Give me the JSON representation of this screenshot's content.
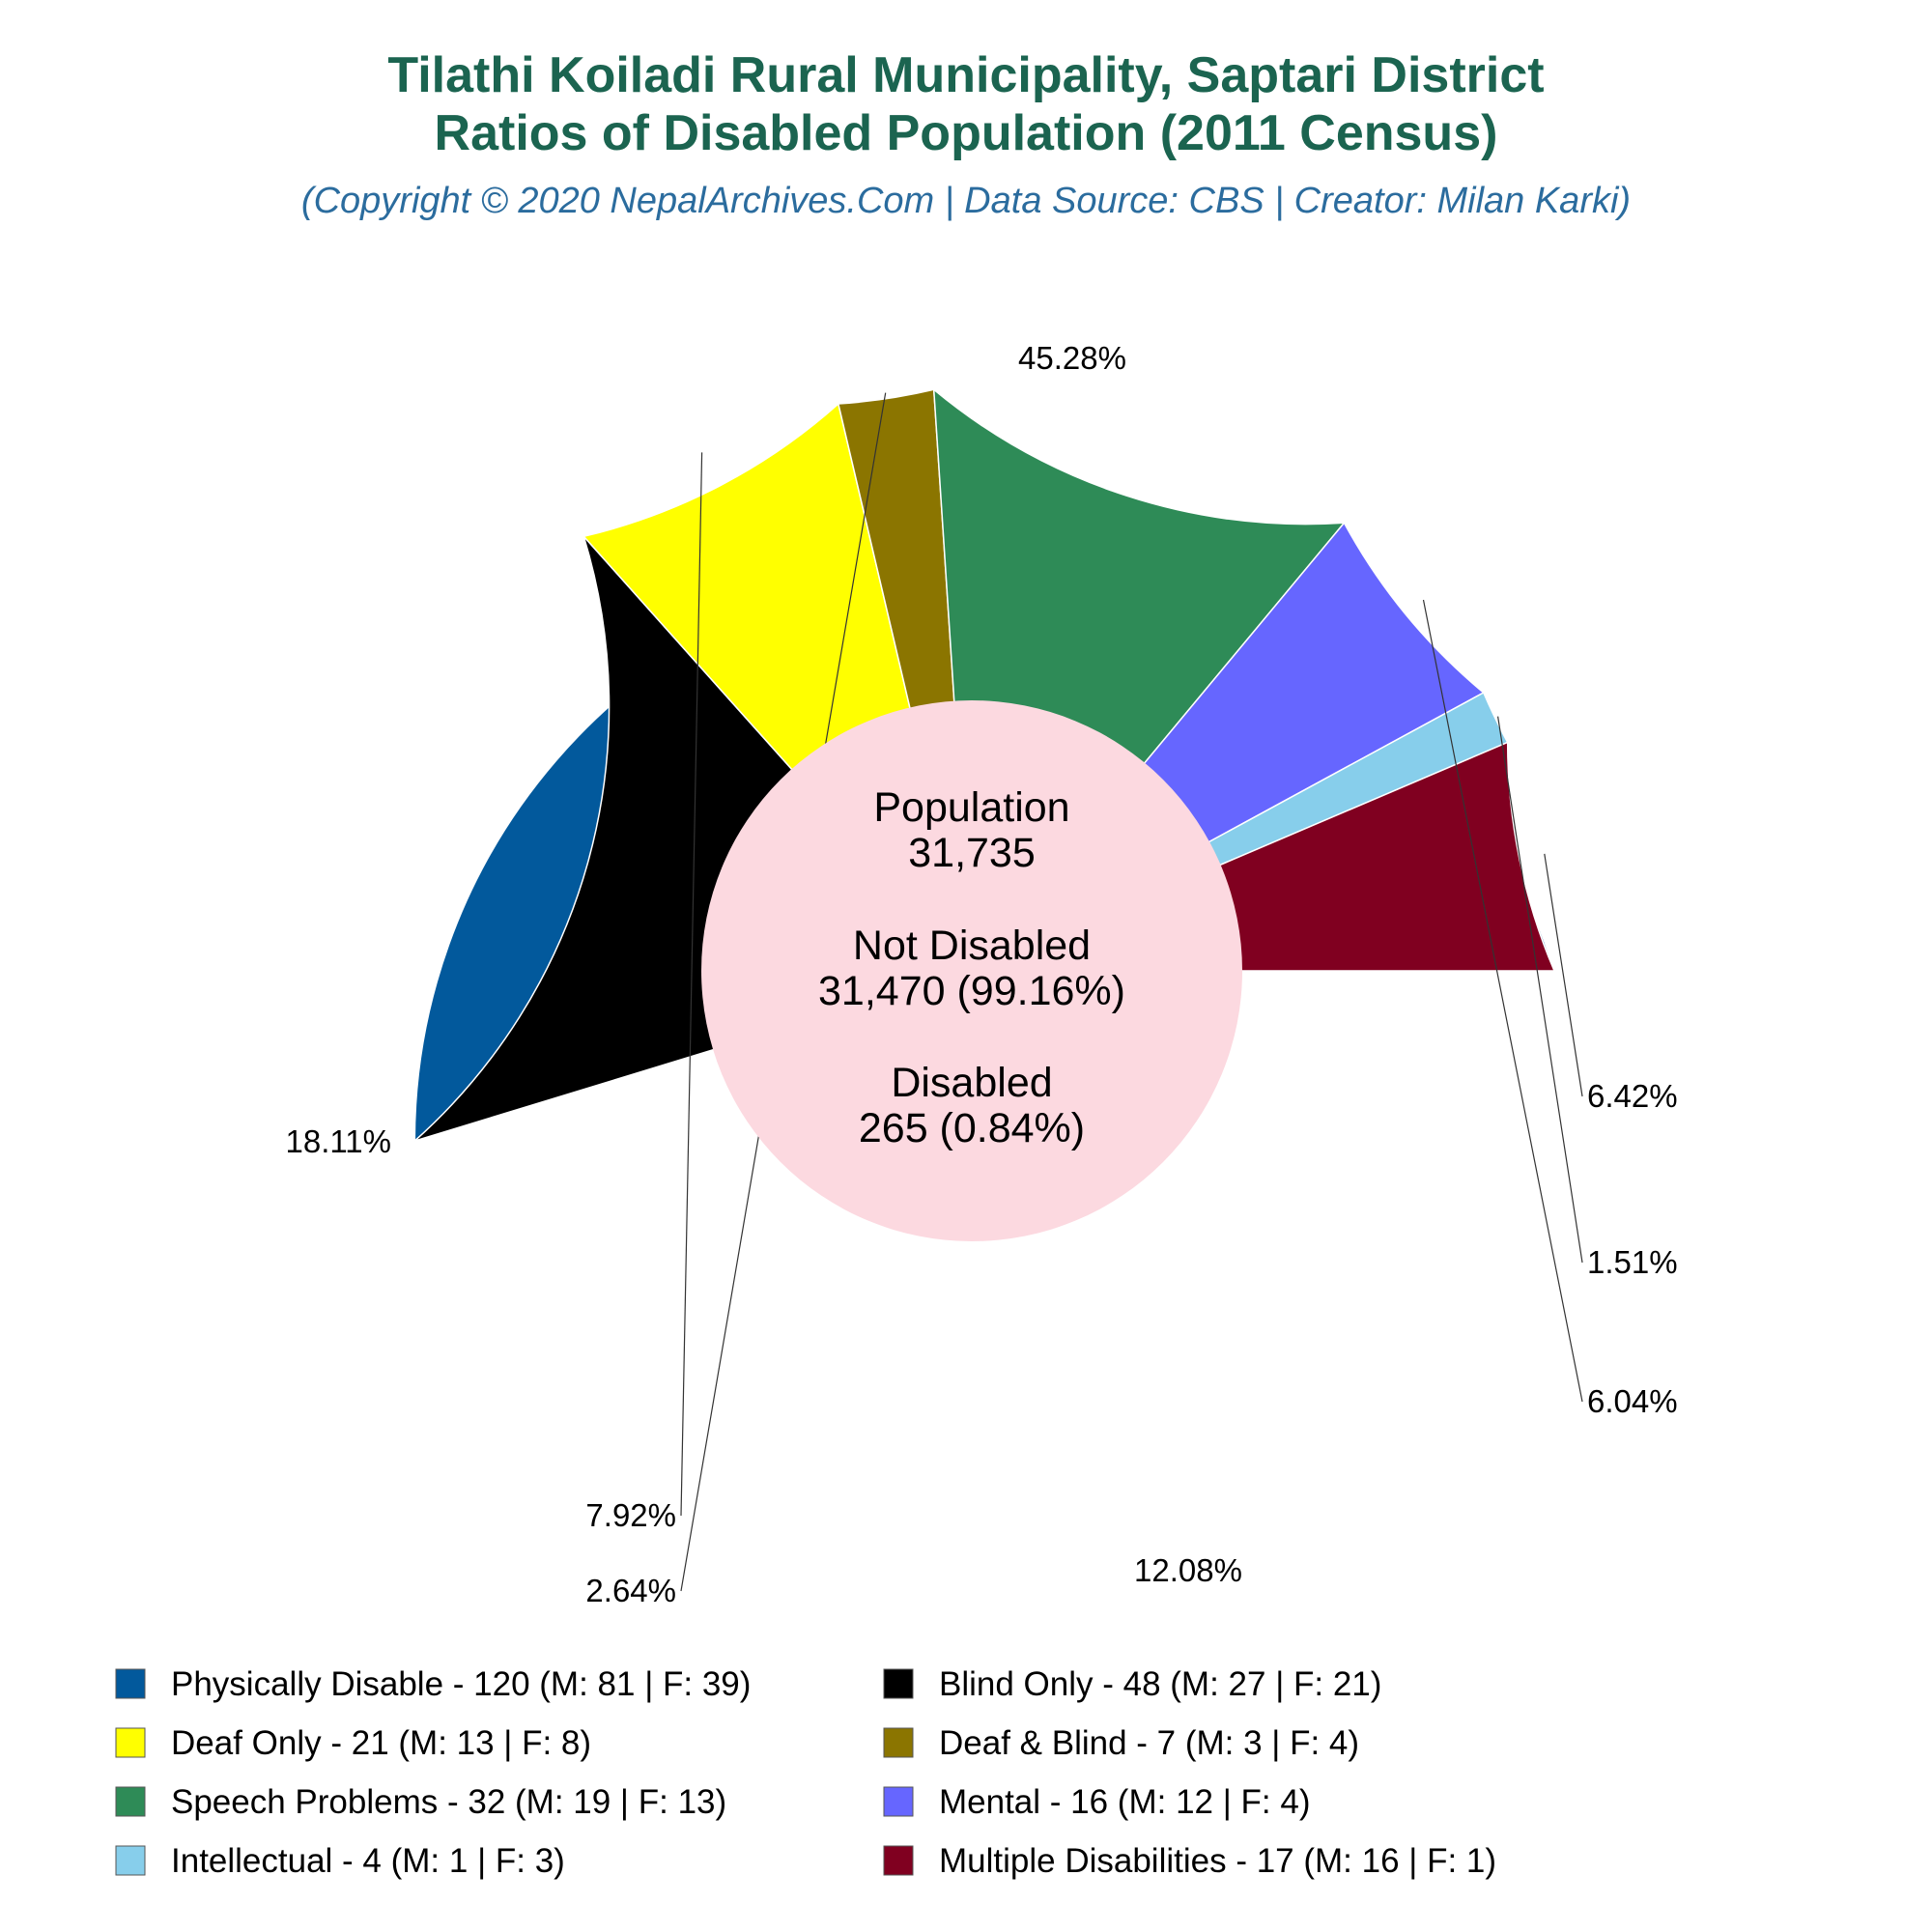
{
  "header": {
    "title_line1": "Tilathi Koiladi Rural Municipality, Saptari District",
    "title_line2": "Ratios of Disabled Population (2011 Census)",
    "subtitle": "(Copyright © 2020 NepalArchives.Com | Data Source: CBS | Creator: Milan Karki)",
    "title_color": "#1b6450",
    "subtitle_color": "#2b6c9e"
  },
  "center": {
    "fill": "#fcd9e0",
    "population_label": "Population",
    "population_value": "31,735",
    "not_disabled_label": "Not Disabled",
    "not_disabled_value": "31,470 (99.16%)",
    "disabled_label": "Disabled",
    "disabled_value": "265 (0.84%)"
  },
  "chart_data": {
    "type": "pie",
    "legend_position": "bottom",
    "slices": [
      {
        "legend": "Physically Disable - 120 (M: 81 | F: 39)",
        "value": 120,
        "pct_label": "45.28%",
        "color": "#02599c"
      },
      {
        "legend": "Blind Only - 48 (M: 27 | F: 21)",
        "value": 48,
        "pct_label": "18.11%",
        "color": "#000000"
      },
      {
        "legend": "Deaf Only - 21 (M: 13 | F: 8)",
        "value": 21,
        "pct_label": "7.92%",
        "color": "#ffff00"
      },
      {
        "legend": "Deaf & Blind - 7 (M: 3 | F: 4)",
        "value": 7,
        "pct_label": "2.64%",
        "color": "#8b7500"
      },
      {
        "legend": "Speech Problems - 32 (M: 19 | F: 13)",
        "value": 32,
        "pct_label": "12.08%",
        "color": "#2e8b57"
      },
      {
        "legend": "Mental - 16 (M: 12 | F: 4)",
        "value": 16,
        "pct_label": "6.04%",
        "color": "#6666ff"
      },
      {
        "legend": "Intellectual - 4 (M: 1 | F: 3)",
        "value": 4,
        "pct_label": "1.51%",
        "color": "#87ceeb"
      },
      {
        "legend": "Multiple Disabilities - 17 (M: 16 | F: 1)",
        "value": 17,
        "pct_label": "6.42%",
        "color": "#800020"
      }
    ]
  }
}
